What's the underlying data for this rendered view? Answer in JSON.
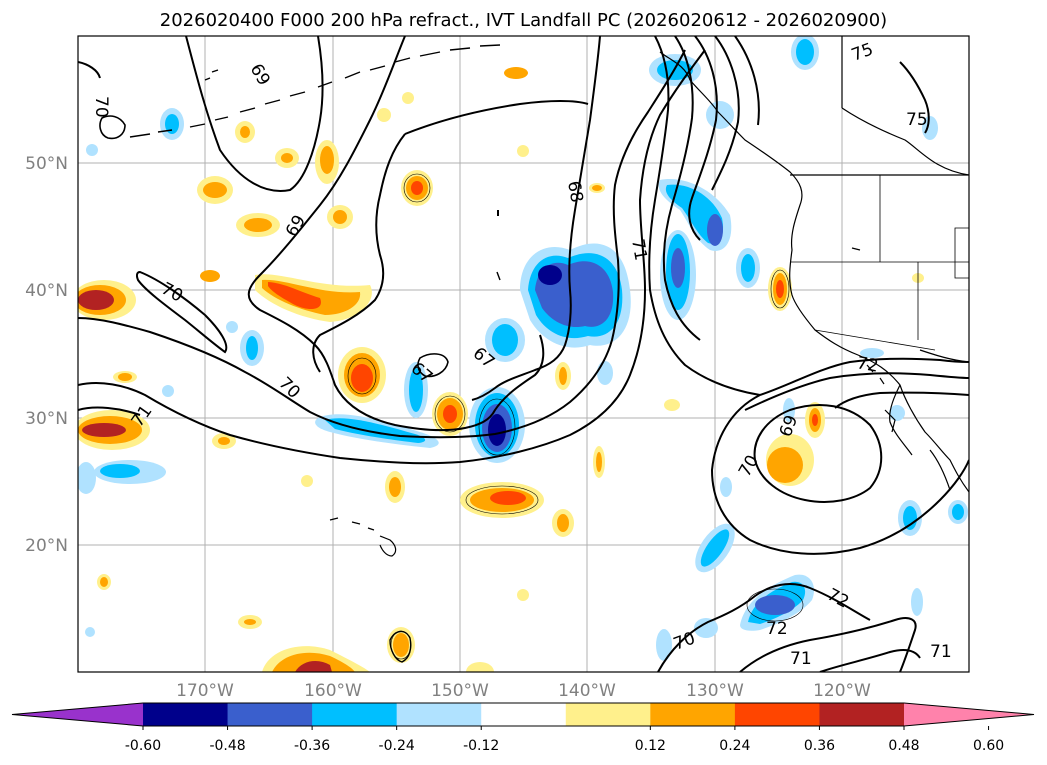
{
  "title": "2026020400 F000 200 hPa refract., IVT Landfall PC (2026020612 - 2026020900)",
  "map": {
    "lat_labels": [
      "50°N",
      "40°N",
      "30°N",
      "20°N"
    ],
    "lon_labels": [
      "170°W",
      "160°W",
      "150°W",
      "140°W",
      "130°W",
      "120°W"
    ],
    "contour_labels": [
      "69",
      "70",
      "70",
      "69",
      "68",
      "71",
      "67",
      "67",
      "70",
      "71",
      "72",
      "69",
      "70",
      "72",
      "72",
      "70",
      "71",
      "71",
      "75",
      "75"
    ]
  },
  "colorbar": {
    "ticks": [
      "-0.60",
      "-0.48",
      "-0.36",
      "-0.24",
      "-0.12",
      "0.12",
      "0.24",
      "0.36",
      "0.48",
      "0.60"
    ],
    "colors": [
      "#9932cc",
      "#00008b",
      "#3a5fcd",
      "#00bfff",
      "#b0e2ff",
      "#ffffff",
      "#fff08c",
      "#ffa500",
      "#ff4500",
      "#b22222",
      "#ff82ab"
    ]
  }
}
